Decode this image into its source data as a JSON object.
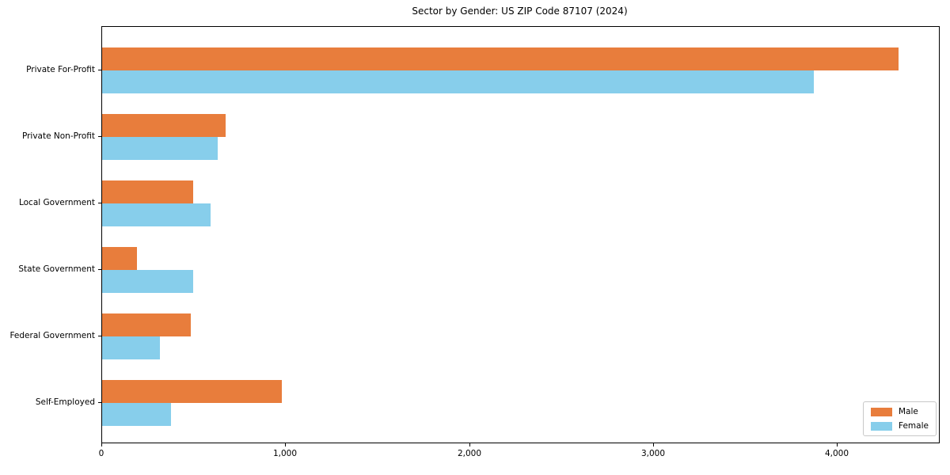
{
  "title": "Sector by Gender: US ZIP Code 87107 (2024)",
  "chart_data": {
    "type": "bar",
    "orientation": "horizontal",
    "title": "Sector by Gender: US ZIP Code 87107 (2024)",
    "categories": [
      "Private For-Profit",
      "Private Non-Profit",
      "Local Government",
      "State Government",
      "Federal Government",
      "Self-Employed"
    ],
    "series": [
      {
        "name": "Male",
        "color": "#e87d3c",
        "values": [
          4330,
          670,
          495,
          190,
          480,
          975
        ]
      },
      {
        "name": "Female",
        "color": "#87ceeb",
        "values": [
          3870,
          630,
          590,
          495,
          315,
          375
        ]
      }
    ],
    "xlabel": "",
    "ylabel": "",
    "xlim": [
      0,
      4550
    ],
    "x_ticks": [
      0,
      1000,
      2000,
      3000,
      4000
    ],
    "x_tick_labels": [
      "0",
      "1,000",
      "2,000",
      "3,000",
      "4,000"
    ],
    "grid": false,
    "legend_position": "lower right",
    "colors": {
      "male": "#e87d3c",
      "female": "#87ceeb",
      "spine": "#000000",
      "background": "#ffffff"
    }
  }
}
